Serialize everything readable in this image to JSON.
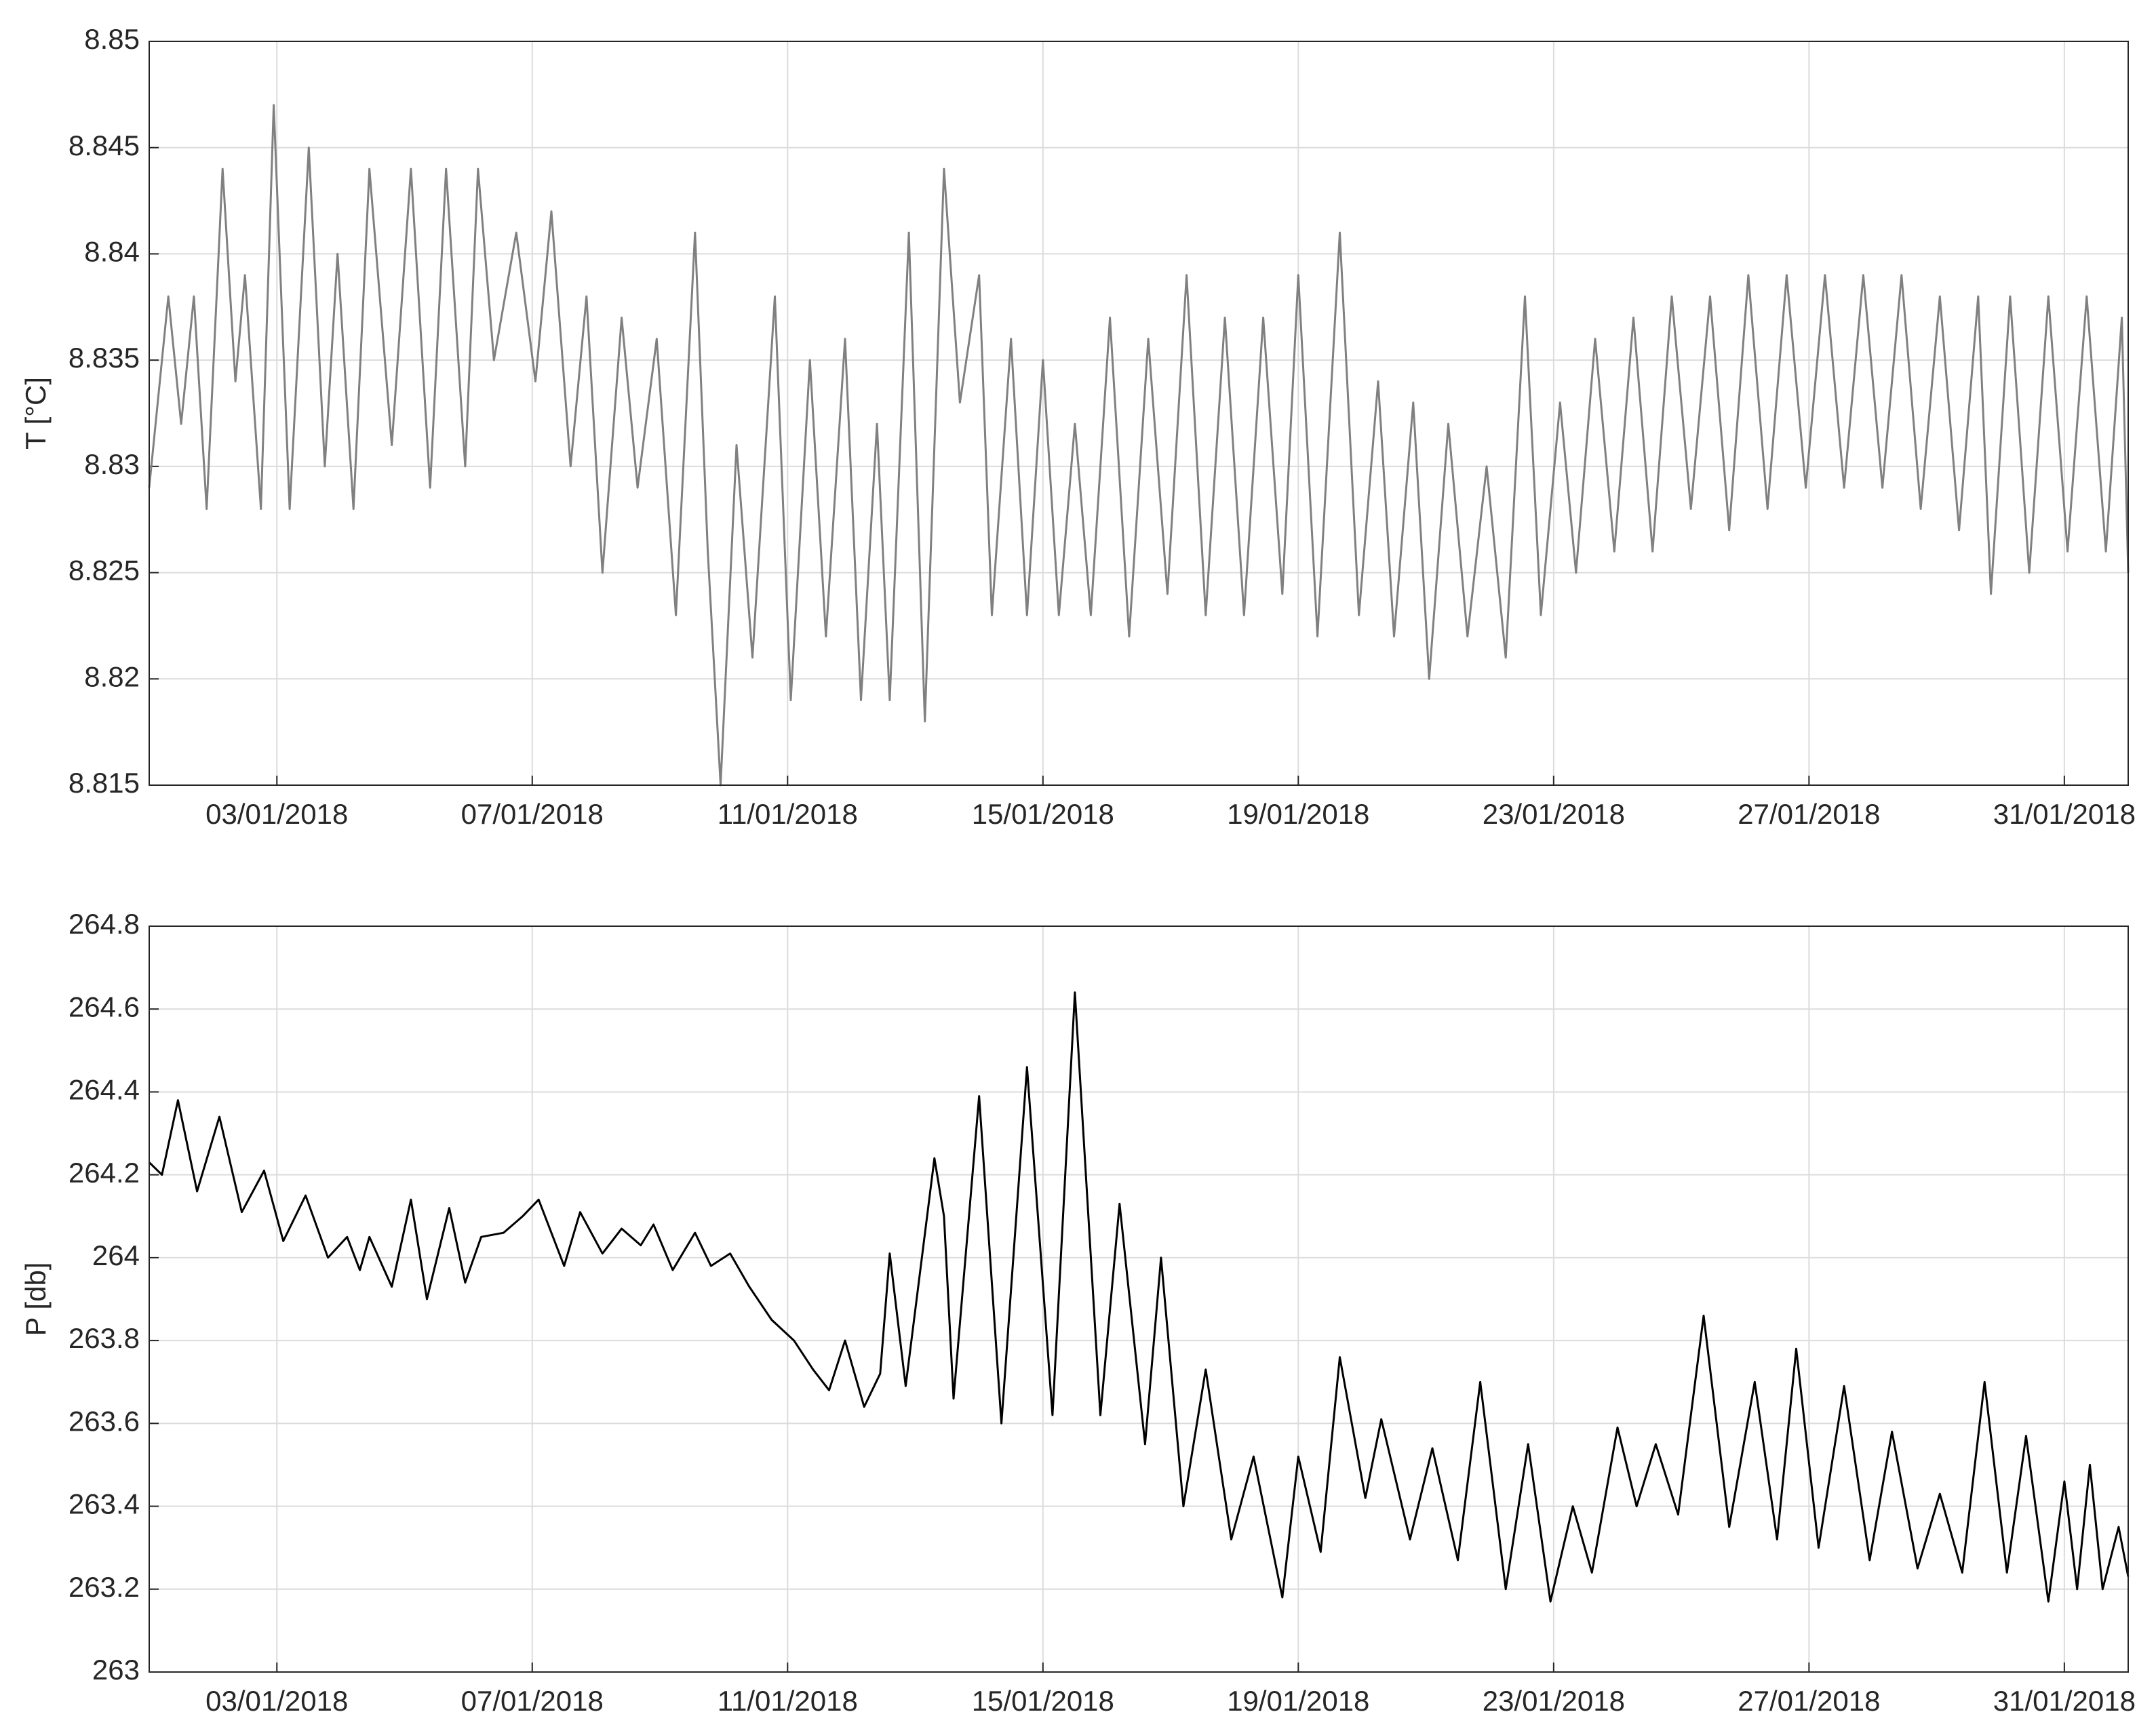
{
  "chart_data": [
    {
      "type": "line",
      "ylabel": "T [°C]",
      "color": "#808080",
      "grid": true,
      "xlim": [
        1,
        32
      ],
      "ylim": [
        8.815,
        8.85
      ],
      "xticks": [
        {
          "value": 3,
          "label": "03/01/2018"
        },
        {
          "value": 7,
          "label": "07/01/2018"
        },
        {
          "value": 11,
          "label": "11/01/2018"
        },
        {
          "value": 15,
          "label": "15/01/2018"
        },
        {
          "value": 19,
          "label": "19/01/2018"
        },
        {
          "value": 23,
          "label": "23/01/2018"
        },
        {
          "value": 27,
          "label": "27/01/2018"
        },
        {
          "value": 31,
          "label": "31/01/2018"
        }
      ],
      "yticks": [
        8.815,
        8.82,
        8.825,
        8.83,
        8.835,
        8.84,
        8.845,
        8.85
      ],
      "x": [
        1,
        1.3,
        1.5,
        1.7,
        1.9,
        2.15,
        2.35,
        2.5,
        2.75,
        2.95,
        3.2,
        3.5,
        3.75,
        3.95,
        4.2,
        4.45,
        4.8,
        5.1,
        5.4,
        5.65,
        5.95,
        6.15,
        6.4,
        6.75,
        7.05,
        7.3,
        7.6,
        7.85,
        8.1,
        8.4,
        8.65,
        8.95,
        9.25,
        9.55,
        9.75,
        9.95,
        10.2,
        10.45,
        10.8,
        11.05,
        11.35,
        11.6,
        11.9,
        12.15,
        12.4,
        12.6,
        12.9,
        13.15,
        13.45,
        13.7,
        14.0,
        14.2,
        14.5,
        14.75,
        15.0,
        15.25,
        15.5,
        15.75,
        16.05,
        16.35,
        16.65,
        16.95,
        17.25,
        17.55,
        17.85,
        18.15,
        18.45,
        18.75,
        19.0,
        19.3,
        19.65,
        19.95,
        20.25,
        20.5,
        20.8,
        21.05,
        21.35,
        21.65,
        21.95,
        22.25,
        22.55,
        22.8,
        23.1,
        23.35,
        23.65,
        23.95,
        24.25,
        24.55,
        24.85,
        25.15,
        25.45,
        25.75,
        26.05,
        26.35,
        26.65,
        26.95,
        27.25,
        27.55,
        27.85,
        28.15,
        28.45,
        28.75,
        29.05,
        29.35,
        29.65,
        29.85,
        30.15,
        30.45,
        30.75,
        31.05,
        31.35,
        31.65,
        31.9,
        32
      ],
      "values": [
        8.829,
        8.838,
        8.832,
        8.838,
        8.828,
        8.844,
        8.834,
        8.839,
        8.828,
        8.847,
        8.828,
        8.845,
        8.83,
        8.84,
        8.828,
        8.844,
        8.831,
        8.844,
        8.829,
        8.844,
        8.83,
        8.844,
        8.835,
        8.841,
        8.834,
        8.842,
        8.83,
        8.838,
        8.825,
        8.837,
        8.829,
        8.836,
        8.823,
        8.841,
        8.826,
        8.815,
        8.831,
        8.821,
        8.838,
        8.819,
        8.835,
        8.822,
        8.836,
        8.819,
        8.832,
        8.819,
        8.841,
        8.818,
        8.844,
        8.833,
        8.839,
        8.823,
        8.836,
        8.823,
        8.835,
        8.823,
        8.832,
        8.823,
        8.837,
        8.822,
        8.836,
        8.824,
        8.839,
        8.823,
        8.837,
        8.823,
        8.837,
        8.824,
        8.839,
        8.822,
        8.841,
        8.823,
        8.834,
        8.822,
        8.833,
        8.82,
        8.832,
        8.822,
        8.83,
        8.821,
        8.838,
        8.823,
        8.833,
        8.825,
        8.836,
        8.826,
        8.837,
        8.826,
        8.838,
        8.828,
        8.838,
        8.827,
        8.839,
        8.828,
        8.839,
        8.829,
        8.839,
        8.829,
        8.839,
        8.829,
        8.839,
        8.828,
        8.838,
        8.827,
        8.838,
        8.824,
        8.838,
        8.825,
        8.838,
        8.826,
        8.838,
        8.826,
        8.837,
        8.825
      ]
    },
    {
      "type": "line",
      "ylabel": "P [db]",
      "color": "#000000",
      "grid": true,
      "xlim": [
        1,
        32
      ],
      "ylim": [
        263,
        264.8
      ],
      "xticks": [
        {
          "value": 3,
          "label": "03/01/2018"
        },
        {
          "value": 7,
          "label": "07/01/2018"
        },
        {
          "value": 11,
          "label": "11/01/2018"
        },
        {
          "value": 15,
          "label": "15/01/2018"
        },
        {
          "value": 19,
          "label": "19/01/2018"
        },
        {
          "value": 23,
          "label": "23/01/2018"
        },
        {
          "value": 27,
          "label": "27/01/2018"
        },
        {
          "value": 31,
          "label": "31/01/2018"
        }
      ],
      "yticks": [
        263,
        263.2,
        263.4,
        263.6,
        263.8,
        264,
        264.2,
        264.4,
        264.6,
        264.8
      ],
      "x": [
        1.0,
        1.2,
        1.45,
        1.75,
        2.1,
        2.45,
        2.8,
        3.1,
        3.45,
        3.8,
        4.1,
        4.3,
        4.45,
        4.8,
        5.1,
        5.35,
        5.7,
        5.95,
        6.2,
        6.55,
        6.85,
        7.1,
        7.5,
        7.75,
        8.1,
        8.4,
        8.7,
        8.9,
        9.2,
        9.55,
        9.8,
        10.1,
        10.4,
        10.75,
        11.1,
        11.4,
        11.65,
        11.9,
        12.2,
        12.45,
        12.6,
        12.85,
        13.3,
        13.45,
        13.6,
        14.0,
        14.35,
        14.75,
        15.15,
        15.5,
        15.9,
        16.2,
        16.6,
        16.85,
        17.2,
        17.55,
        17.95,
        18.3,
        18.75,
        19.0,
        19.35,
        19.65,
        20.05,
        20.3,
        20.75,
        21.1,
        21.5,
        21.85,
        22.25,
        22.6,
        22.95,
        23.3,
        23.6,
        24.0,
        24.3,
        24.6,
        24.95,
        25.35,
        25.75,
        26.15,
        26.5,
        26.8,
        27.15,
        27.55,
        27.95,
        28.3,
        28.7,
        29.05,
        29.4,
        29.75,
        30.1,
        30.4,
        30.75,
        31.0,
        31.2,
        31.4,
        31.6,
        31.85,
        32.0
      ],
      "values": [
        264.23,
        264.2,
        264.38,
        264.16,
        264.34,
        264.11,
        264.21,
        264.04,
        264.15,
        264.0,
        264.05,
        263.97,
        264.05,
        263.93,
        264.14,
        263.9,
        264.12,
        263.94,
        264.05,
        264.06,
        264.1,
        264.14,
        263.98,
        264.11,
        264.01,
        264.07,
        264.03,
        264.08,
        263.97,
        264.06,
        263.98,
        264.01,
        263.93,
        263.85,
        263.8,
        263.73,
        263.68,
        263.8,
        263.64,
        263.72,
        264.01,
        263.69,
        264.24,
        264.1,
        263.66,
        264.39,
        263.6,
        264.46,
        263.62,
        264.64,
        263.62,
        264.13,
        263.55,
        264.0,
        263.4,
        263.73,
        263.32,
        263.52,
        263.18,
        263.52,
        263.29,
        263.76,
        263.42,
        263.61,
        263.32,
        263.54,
        263.27,
        263.7,
        263.2,
        263.55,
        263.17,
        263.4,
        263.24,
        263.59,
        263.4,
        263.55,
        263.38,
        263.86,
        263.35,
        263.7,
        263.32,
        263.78,
        263.3,
        263.69,
        263.27,
        263.58,
        263.25,
        263.43,
        263.24,
        263.7,
        263.24,
        263.57,
        263.17,
        263.46,
        263.2,
        263.5,
        263.2,
        263.35,
        263.23
      ]
    }
  ]
}
